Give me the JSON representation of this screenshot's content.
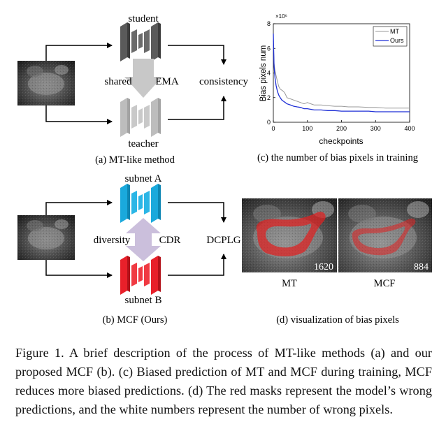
{
  "panel_a": {
    "student_label": "student",
    "teacher_label": "teacher",
    "shared_label": "shared",
    "ema_label": "EMA",
    "consistency_label": "consistency",
    "caption": "(a) MT-like method"
  },
  "panel_b": {
    "subnet_a_label": "subnet A",
    "subnet_b_label": "subnet B",
    "diversity_label": "diversity",
    "cdr_label": "CDR",
    "dcplg_label": "DCPLG",
    "caption": "(b) MCF (Ours)",
    "colors": {
      "subnet_a": "#1aa9dc",
      "subnet_b": "#e8202a",
      "arrow": "#cbbfdc"
    }
  },
  "panel_c": {
    "caption": "(c) the number of bias pixels in training",
    "chart_data": {
      "type": "line",
      "xlabel": "checkpoints",
      "ylabel": "Bias pixels num",
      "multiplier": "×10⁶",
      "xlim": [
        0,
        400
      ],
      "ylim": [
        0,
        8
      ],
      "xticks": [
        0,
        100,
        200,
        300,
        400
      ],
      "yticks": [
        0,
        2,
        4,
        6,
        8
      ],
      "legend_position": "top-right",
      "series": [
        {
          "name": "MT",
          "color": "#999999",
          "x": [
            0,
            2,
            5,
            8,
            12,
            16,
            20,
            25,
            30,
            35,
            40,
            50,
            60,
            70,
            80,
            90,
            100,
            110,
            120,
            140,
            160,
            180,
            200,
            220,
            250,
            280,
            300,
            330,
            360,
            400
          ],
          "y": [
            6.5,
            4.8,
            4.2,
            3.8,
            3.3,
            2.9,
            2.7,
            2.6,
            2.5,
            2.3,
            2.0,
            1.9,
            1.8,
            1.7,
            1.6,
            1.5,
            1.6,
            1.5,
            1.4,
            1.4,
            1.35,
            1.3,
            1.3,
            1.25,
            1.25,
            1.2,
            1.2,
            1.15,
            1.15,
            1.15
          ]
        },
        {
          "name": "Ours",
          "color": "#1f2fd6",
          "x": [
            0,
            2,
            5,
            8,
            12,
            16,
            20,
            25,
            30,
            35,
            40,
            50,
            60,
            70,
            80,
            90,
            100,
            110,
            120,
            140,
            160,
            180,
            200,
            220,
            250,
            280,
            300,
            330,
            360,
            400
          ],
          "y": [
            7.2,
            4.6,
            3.6,
            3.0,
            2.5,
            2.2,
            2.0,
            1.8,
            1.7,
            1.6,
            1.5,
            1.4,
            1.3,
            1.25,
            1.2,
            1.1,
            1.1,
            1.05,
            1.0,
            1.0,
            0.95,
            0.95,
            0.9,
            0.9,
            0.9,
            0.9,
            0.85,
            0.85,
            0.85,
            0.85
          ]
        }
      ]
    }
  },
  "panel_d": {
    "caption": "(d) visualization of bias pixels",
    "mt_label": "MT",
    "mcf_label": "MCF",
    "mt_count": "1620",
    "mcf_count": "884"
  },
  "caption": {
    "text": "Figure 1.  A brief description of the process of MT-like methods (a) and our proposed MCF (b). (c) Biased prediction of MT and MCF during training, MCF reduces more biased predictions. (d) The red masks represent the model’s wrong predictions, and the white numbers represent the number of wrong pixels."
  }
}
